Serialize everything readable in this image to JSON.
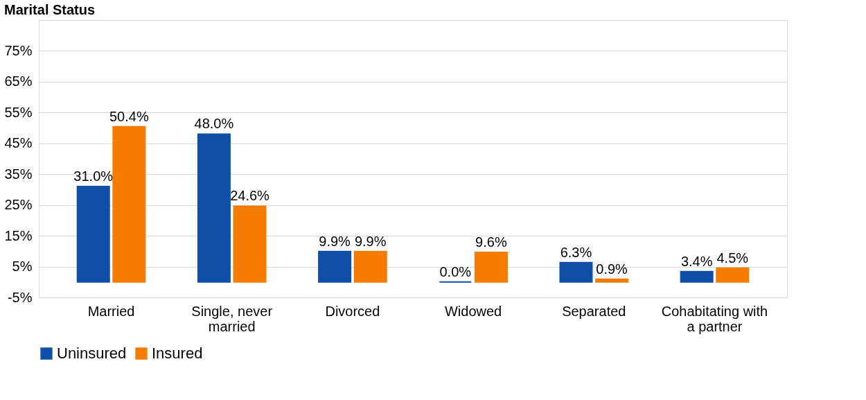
{
  "chart_data": {
    "type": "bar",
    "title": "Marital Status",
    "categories": [
      "Married",
      "Single, never married",
      "Divorced",
      "Widowed",
      "Separated",
      "Cohabitating with a partner"
    ],
    "series": [
      {
        "name": "Uninsured",
        "color": "#0f4fa8",
        "values": [
          31.0,
          48.0,
          9.9,
          0.0,
          6.3,
          3.4
        ],
        "value_labels": [
          "31.0%",
          "48.0%",
          "9.9%",
          "0.0%",
          "6.3%",
          "3.4%"
        ]
      },
      {
        "name": "Insured",
        "color": "#f57c00",
        "values": [
          50.4,
          24.6,
          9.9,
          9.6,
          0.9,
          4.5
        ],
        "value_labels": [
          "50.4%",
          "24.6%",
          "9.9%",
          "9.6%",
          "0.9%",
          "4.5%"
        ]
      }
    ],
    "ylim": [
      -5,
      85
    ],
    "yticks": [
      {
        "value": -5,
        "label": "-5%"
      },
      {
        "value": 5,
        "label": "5%"
      },
      {
        "value": 15,
        "label": "15%"
      },
      {
        "value": 25,
        "label": "25%"
      },
      {
        "value": 35,
        "label": "35%"
      },
      {
        "value": 45,
        "label": "45%"
      },
      {
        "value": 55,
        "label": "55%"
      },
      {
        "value": 65,
        "label": "65%"
      },
      {
        "value": 75,
        "label": "75%"
      },
      {
        "value": 85,
        "label": null
      }
    ],
    "grid": "y",
    "legend": "bottom"
  }
}
